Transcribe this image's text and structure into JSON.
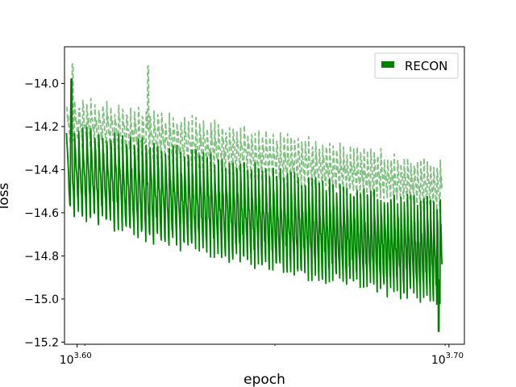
{
  "chart_data": {
    "type": "line",
    "title": "",
    "xlabel": "epoch",
    "ylabel": "loss",
    "xscale": "log",
    "xlim": [
      3950,
      5060
    ],
    "ylim": [
      -15.21,
      -13.83
    ],
    "x_ticks": [
      {
        "value": 3981.07,
        "base": "10",
        "exponent": "3.60"
      },
      {
        "value": 5011.87,
        "base": "10",
        "exponent": "3.70"
      }
    ],
    "y_ticks": [
      {
        "value": -14.0,
        "label": "−14.0"
      },
      {
        "value": -14.2,
        "label": "−14.2"
      },
      {
        "value": -14.4,
        "label": "−14.4"
      },
      {
        "value": -14.6,
        "label": "−14.6"
      },
      {
        "value": -14.8,
        "label": "−14.8"
      },
      {
        "value": -15.0,
        "label": "−15.0"
      },
      {
        "value": -15.2,
        "label": "−15.2"
      }
    ],
    "grid": false,
    "legend_position": "top-right",
    "legend": [
      {
        "label": "RECON",
        "color": "#008000"
      }
    ],
    "x_range": [
      3955,
      4990
    ],
    "oscillation_period_epochs": 10,
    "series": [
      {
        "name": "RECON",
        "style": "solid",
        "color": "#008000",
        "trend_high": [
          [
            3955,
            -14.2
          ],
          [
            4200,
            -14.3
          ],
          [
            4500,
            -14.42
          ],
          [
            4800,
            -14.52
          ],
          [
            4990,
            -14.56
          ]
        ],
        "trend_low": [
          [
            3955,
            -14.63
          ],
          [
            4200,
            -14.78
          ],
          [
            4500,
            -14.9
          ],
          [
            4800,
            -15.0
          ],
          [
            4990,
            -15.05
          ]
        ],
        "extremes": [
          [
            3967,
            -13.98
          ],
          [
            4980,
            -15.15
          ]
        ]
      },
      {
        "name": "",
        "style": "dashed",
        "color": "#7fbf7f",
        "trend_high": [
          [
            3955,
            -14.08
          ],
          [
            4200,
            -14.15
          ],
          [
            4500,
            -14.25
          ],
          [
            4800,
            -14.33
          ],
          [
            4990,
            -14.38
          ]
        ],
        "trend_low": [
          [
            3955,
            -14.28
          ],
          [
            4200,
            -14.38
          ],
          [
            4500,
            -14.47
          ],
          [
            4800,
            -14.55
          ],
          [
            4990,
            -14.6
          ]
        ],
        "extremes": [
          [
            3970,
            -13.91
          ],
          [
            4160,
            -13.92
          ]
        ]
      }
    ]
  }
}
